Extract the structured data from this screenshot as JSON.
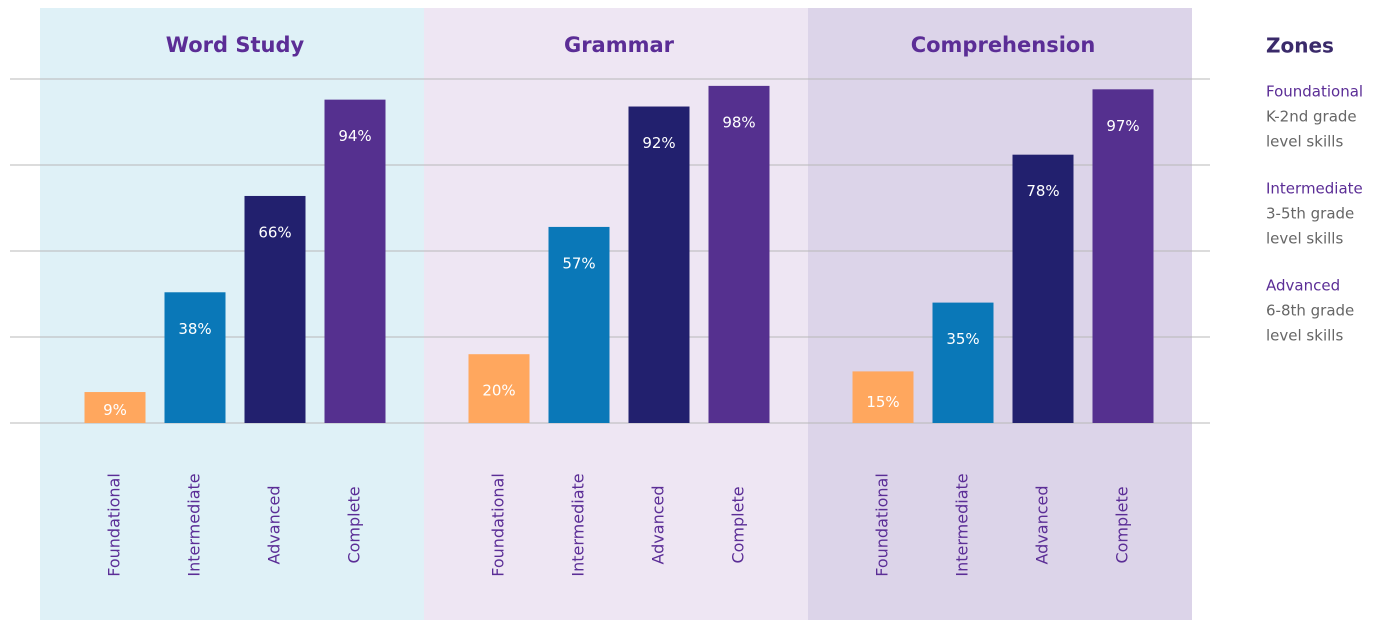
{
  "chart_data": {
    "type": "bar",
    "categories": [
      "Word Study",
      "Grammar",
      "Comprehension"
    ],
    "series": [
      {
        "name": "Foundational",
        "color": "#ffa75e",
        "values": [
          9,
          20,
          15
        ],
        "value_labels": [
          "9%",
          "20%",
          "15%"
        ]
      },
      {
        "name": "Intermediate",
        "color": "#0a78b8",
        "values": [
          38,
          57,
          35
        ],
        "value_labels": [
          "38%",
          "57%",
          "35%"
        ]
      },
      {
        "name": "Advanced",
        "color": "#22206e",
        "values": [
          66,
          92,
          78
        ],
        "value_labels": [
          "66%",
          "92%",
          "78%"
        ]
      },
      {
        "name": "Complete",
        "color": "#55308f",
        "values": [
          94,
          98,
          97
        ],
        "value_labels": [
          "94%",
          "98%",
          "97%"
        ]
      }
    ],
    "ylim": [
      0,
      100
    ],
    "yticks": [
      0,
      25,
      50,
      75,
      100
    ],
    "grid": true,
    "legend": {
      "title": "Zones",
      "descriptions": [
        [
          "K-2nd grade",
          "level skills"
        ],
        [
          "3-5th grade",
          "level skills"
        ],
        [
          "6-8th grade",
          "level skills"
        ]
      ]
    }
  }
}
